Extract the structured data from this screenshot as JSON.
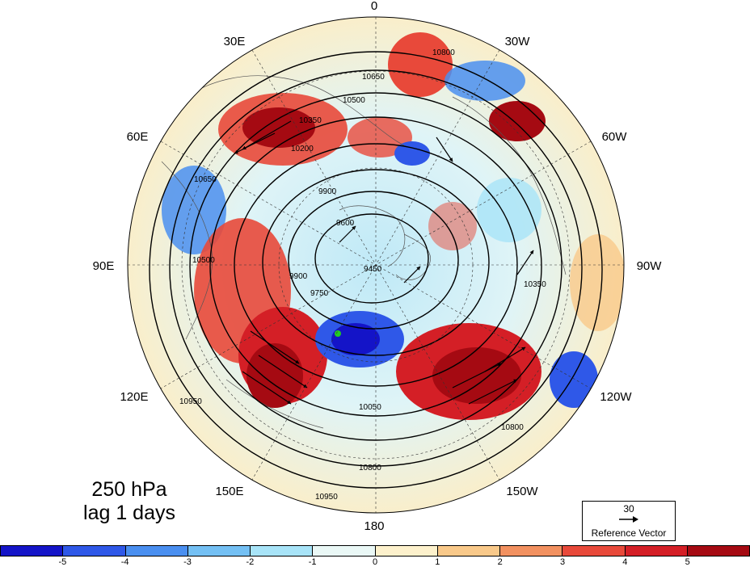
{
  "map": {
    "level": "250 hPa",
    "lag": "lag 1 days",
    "lon_labels": {
      "top": "0",
      "top_left": "30E",
      "top_right": "30W",
      "upper_left": "60E",
      "upper_right": "60W",
      "left": "90E",
      "right": "90W",
      "lower_left": "120E",
      "lower_right": "120W",
      "bottom_left": "150E",
      "bottom_right": "150W",
      "bottom": "180"
    },
    "contour_labels": [
      "10800",
      "10650",
      "10500",
      "10350",
      "10200",
      "9900",
      "9600",
      "9450",
      "9750",
      "9900",
      "10050",
      "10800",
      "10950",
      "10650",
      "10500",
      "10350",
      "10950",
      "10800"
    ],
    "reference_vector": {
      "value": "30",
      "label": "Reference Vector"
    },
    "colorbar": {
      "ticks": [
        "-5",
        "-4",
        "-3",
        "-2",
        "-1",
        "0",
        "1",
        "2",
        "3",
        "4",
        "5"
      ],
      "colors": [
        "#1414c8",
        "#2f58e8",
        "#4a8ff0",
        "#74c0f4",
        "#a8e4f8",
        "#eaf8f6",
        "#fdf1cc",
        "#f9c98a",
        "#f29160",
        "#e8493a",
        "#d41f26",
        "#a50a12"
      ]
    }
  }
}
